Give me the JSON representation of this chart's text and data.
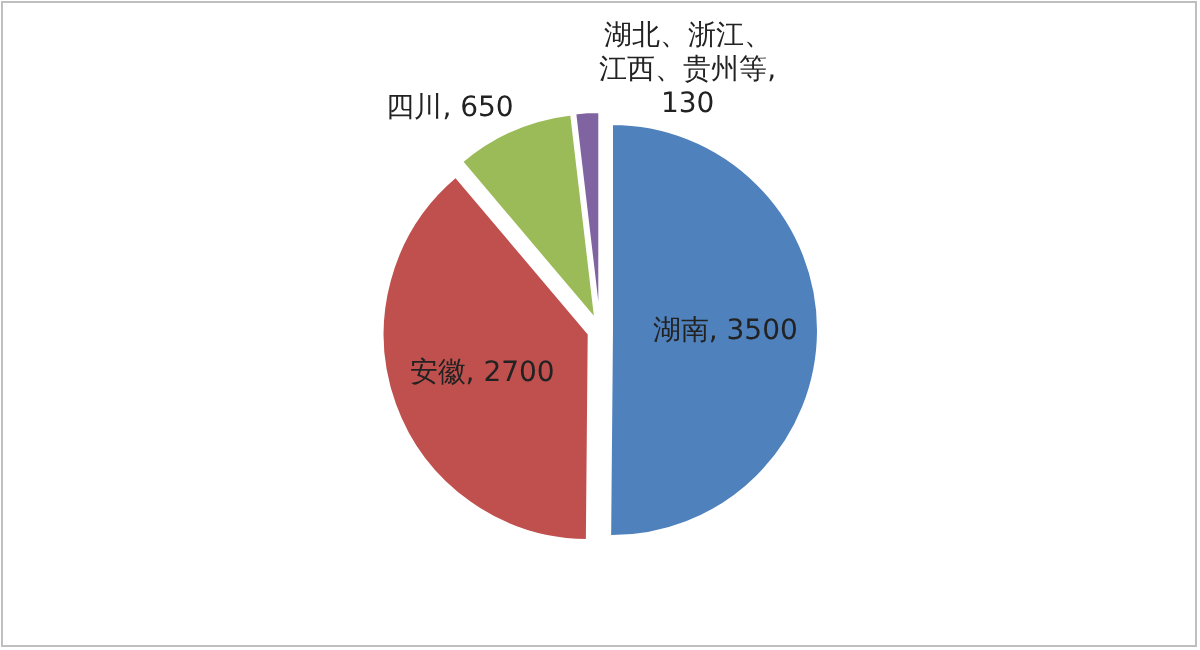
{
  "chart_data": {
    "type": "pie",
    "categories": [
      "湖南",
      "安徽",
      "四川",
      "湖北、浙江、江西、贵州等"
    ],
    "values": [
      3500,
      2700,
      650,
      130
    ],
    "value_labels": [
      ", 3500",
      ", 2700",
      ", 650",
      ", 130"
    ],
    "colors": [
      "#4f81bd",
      "#c0504d",
      "#9bbb59",
      "#8064a2"
    ],
    "legend": false
  }
}
